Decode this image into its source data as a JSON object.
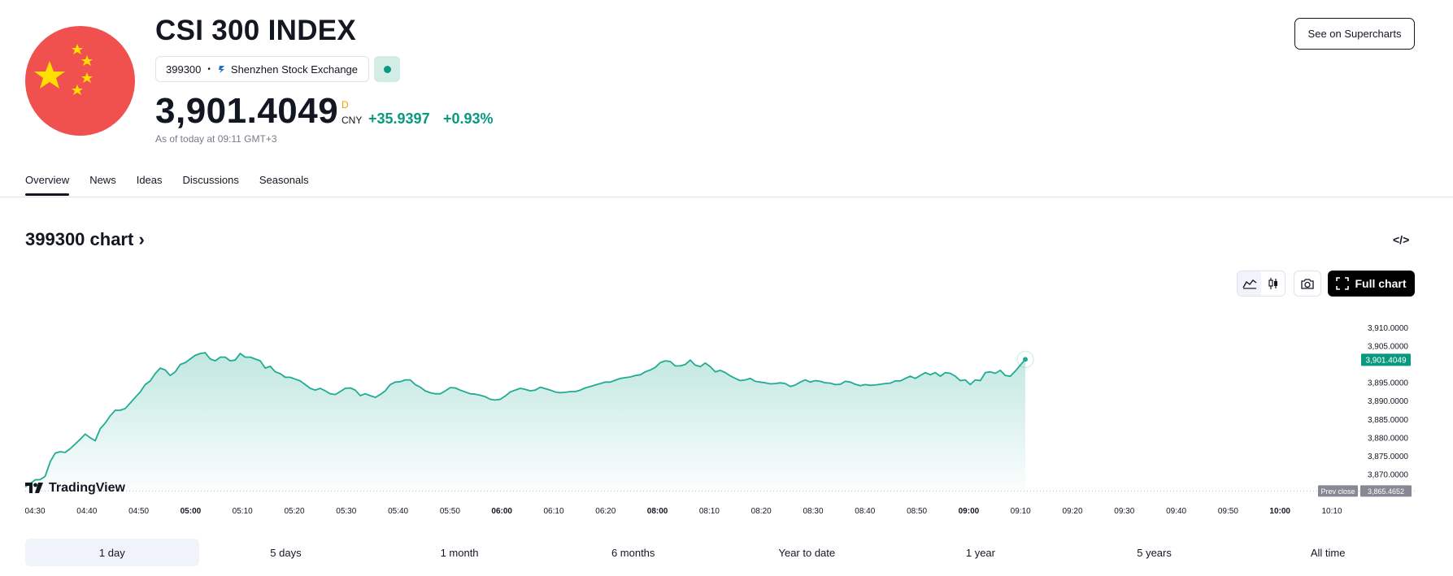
{
  "header": {
    "title": "CSI 300 INDEX",
    "symbol": "399300",
    "exchange": "Shenzhen Stock Exchange",
    "market_status": "open",
    "price": "3,901.4049",
    "price_flag": "D",
    "currency": "CNY",
    "change": "+35.9397",
    "change_pct": "+0.93%",
    "as_of": "As of today at 09:11 GMT+3",
    "supercharts_label": "See on Supercharts"
  },
  "tabs": [
    "Overview",
    "News",
    "Ideas",
    "Discussions",
    "Seasonals"
  ],
  "active_tab": "Overview",
  "chart_section": {
    "title": "399300 chart",
    "full_chart_label": "Full chart",
    "brand": "TradingView",
    "embed_icon": "code-icon",
    "tool_icons": [
      "area-chart-icon",
      "candles-icon",
      "camera-icon",
      "fullscreen-icon"
    ]
  },
  "ranges": [
    "1 day",
    "5 days",
    "1 month",
    "6 months",
    "Year to date",
    "1 year",
    "5 years",
    "All time"
  ],
  "active_range": "1 day",
  "colors": {
    "up": "#089981",
    "line": "#22ab94",
    "flag_red": "#f0514f",
    "flag_star": "#ffde00",
    "price_flag": "#ff9800"
  },
  "chart_data": {
    "type": "area",
    "ylim": [
      3866,
      3913
    ],
    "y_ticks": [
      "3,910.0000",
      "3,905.0000",
      "3,895.0000",
      "3,890.0000",
      "3,885.0000",
      "3,880.0000",
      "3,875.0000",
      "3,870.0000"
    ],
    "x_ticks": [
      {
        "label": "04:30",
        "bold": false
      },
      {
        "label": "04:40",
        "bold": false
      },
      {
        "label": "04:50",
        "bold": false
      },
      {
        "label": "05:00",
        "bold": true
      },
      {
        "label": "05:10",
        "bold": false
      },
      {
        "label": "05:20",
        "bold": false
      },
      {
        "label": "05:30",
        "bold": false
      },
      {
        "label": "05:40",
        "bold": false
      },
      {
        "label": "05:50",
        "bold": false
      },
      {
        "label": "06:00",
        "bold": true
      },
      {
        "label": "06:10",
        "bold": false
      },
      {
        "label": "06:20",
        "bold": false
      },
      {
        "label": "08:00",
        "bold": true
      },
      {
        "label": "08:10",
        "bold": false
      },
      {
        "label": "08:20",
        "bold": false
      },
      {
        "label": "08:30",
        "bold": false
      },
      {
        "label": "08:40",
        "bold": false
      },
      {
        "label": "08:50",
        "bold": false
      },
      {
        "label": "09:00",
        "bold": true
      },
      {
        "label": "09:10",
        "bold": false
      },
      {
        "label": "09:20",
        "bold": false
      },
      {
        "label": "09:30",
        "bold": false
      },
      {
        "label": "09:40",
        "bold": false
      },
      {
        "label": "09:50",
        "bold": false
      },
      {
        "label": "10:00",
        "bold": true
      },
      {
        "label": "10:10",
        "bold": false
      }
    ],
    "last_price_label": "3,901.4049",
    "prev_close_label": "Prev close",
    "prev_close_value": "3,865.4652",
    "prev_close": 3865.4652,
    "series": [
      {
        "values": [
          3866.6,
          3867.5,
          3868.5,
          3868.6,
          3869.5,
          3873.5,
          3875.8,
          3876.2,
          3876.0,
          3877.0,
          3878.3,
          3879.6,
          3881.0,
          3880.0,
          3879.2,
          3882.5,
          3884.0,
          3886.0,
          3887.5,
          3887.5,
          3888.0,
          3889.5,
          3891.0,
          3892.5,
          3894.5,
          3895.5,
          3897.5,
          3899.0,
          3898.5,
          3897.0,
          3898.0,
          3900.0,
          3900.5,
          3901.5,
          3902.5,
          3903.0,
          3903.2,
          3901.5,
          3901.0,
          3902.0,
          3902.0,
          3901.0,
          3901.2,
          3903.0,
          3902.0,
          3902.0,
          3901.5,
          3901.0,
          3899.0,
          3899.5,
          3898.0,
          3897.5,
          3896.5,
          3896.5,
          3896.0,
          3895.5,
          3894.5,
          3893.5,
          3893.0,
          3893.5,
          3892.8,
          3892.0,
          3891.8,
          3892.6,
          3893.5,
          3893.6,
          3893.0,
          3891.5,
          3892.0,
          3891.5,
          3891.0,
          3891.8,
          3892.8,
          3894.5,
          3895.2,
          3895.3,
          3895.8,
          3895.8,
          3894.5,
          3893.8,
          3892.8,
          3892.3,
          3892.0,
          3892.0,
          3892.8,
          3893.7,
          3893.6,
          3893.0,
          3892.5,
          3892.0,
          3891.9,
          3891.6,
          3891.2,
          3890.5,
          3890.3,
          3890.5,
          3891.4,
          3892.5,
          3893.0,
          3893.5,
          3893.2,
          3892.8,
          3893.0,
          3893.8,
          3893.4,
          3893.0,
          3892.5,
          3892.3,
          3892.4,
          3892.6,
          3892.6,
          3893.0,
          3893.6,
          3894.0,
          3894.4,
          3894.8,
          3895.2,
          3895.2,
          3895.7,
          3896.2,
          3896.4,
          3896.6,
          3897.0,
          3897.2,
          3898.0,
          3898.5,
          3899.2,
          3900.5,
          3901.0,
          3900.8,
          3899.6,
          3899.6,
          3900.0,
          3901.2,
          3899.8,
          3899.4,
          3900.4,
          3899.4,
          3898.0,
          3898.4,
          3897.8,
          3896.9,
          3896.2,
          3895.6,
          3895.8,
          3896.2,
          3895.4,
          3895.2,
          3895.0,
          3894.7,
          3894.8,
          3895.0,
          3894.8,
          3894.0,
          3894.4,
          3895.2,
          3895.8,
          3895.2,
          3895.6,
          3895.4,
          3895.0,
          3894.9,
          3894.5,
          3894.6,
          3895.4,
          3895.2,
          3894.6,
          3894.2,
          3894.5,
          3894.3,
          3894.4,
          3894.6,
          3894.8,
          3894.9,
          3895.5,
          3895.5,
          3896.2,
          3896.8,
          3896.2,
          3897.0,
          3897.8,
          3897.2,
          3897.8,
          3896.8,
          3897.8,
          3897.6,
          3896.8,
          3895.6,
          3895.8,
          3894.5,
          3895.8,
          3895.6,
          3897.8,
          3898.0,
          3897.6,
          3898.4,
          3897.0,
          3896.8,
          3898.2,
          3899.8,
          3901.4
        ]
      }
    ]
  }
}
